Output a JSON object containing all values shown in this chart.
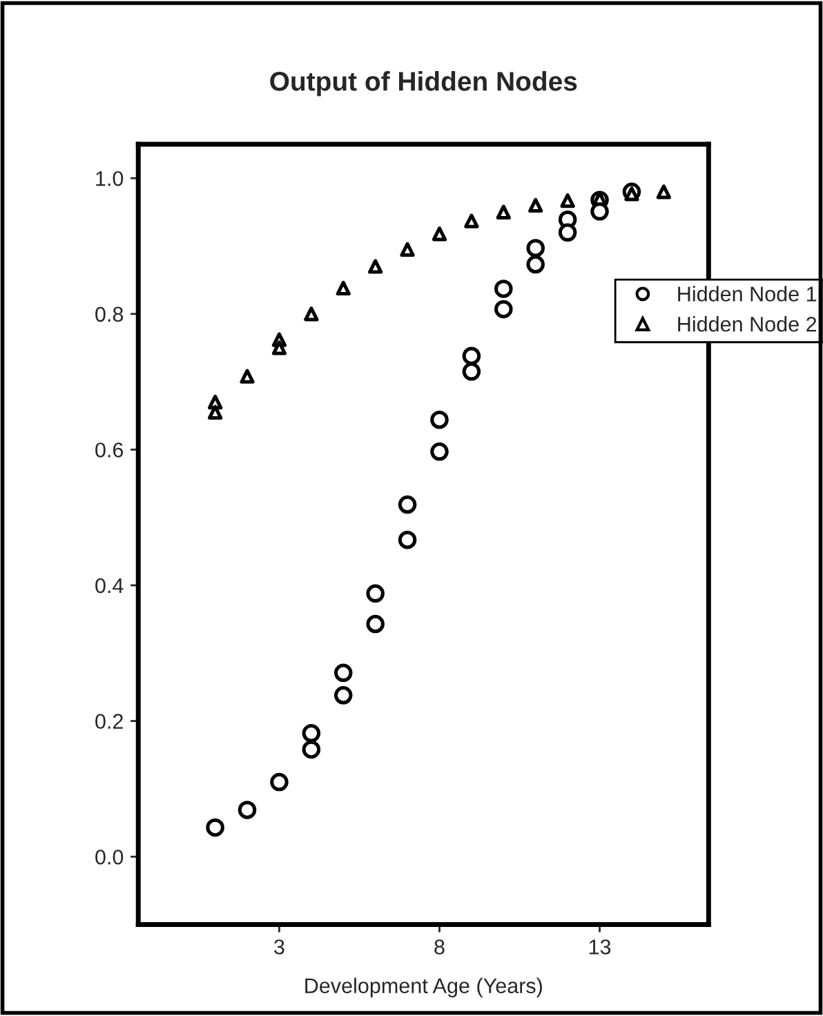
{
  "chart_data": {
    "type": "scatter",
    "title": "Output of Hidden Nodes",
    "xlabel": "Development Age (Years)",
    "xlim": [
      -1.4,
      16.4
    ],
    "xticks": [
      3,
      8,
      13
    ],
    "ylim": [
      -0.1,
      1.05
    ],
    "yticks": [
      {
        "value": 0,
        "label": "0.0"
      },
      {
        "value": 0.2,
        "label": "0.2"
      },
      {
        "value": 0.4,
        "label": "0.4"
      },
      {
        "value": 0.6,
        "label": "0.6"
      },
      {
        "value": 0.8,
        "label": "0.8"
      },
      {
        "value": 1,
        "label": "1.0"
      }
    ],
    "grid": false,
    "legend": "top right",
    "series": [
      {
        "name": "Hidden Node 1",
        "marker": "circle",
        "color": "#000000",
        "x": [
          1,
          2,
          3,
          4,
          4,
          5,
          5,
          6,
          6,
          7,
          7,
          8,
          8,
          9,
          9,
          10,
          10,
          11,
          11,
          12,
          12,
          13,
          13,
          14
        ],
        "values": [
          0.043,
          0.069,
          0.11,
          0.182,
          0.158,
          0.271,
          0.238,
          0.388,
          0.343,
          0.519,
          0.467,
          0.644,
          0.597,
          0.738,
          0.715,
          0.837,
          0.807,
          0.897,
          0.873,
          0.939,
          0.92,
          0.968,
          0.951,
          0.98
        ]
      },
      {
        "name": "Hidden Node 2",
        "marker": "triangle",
        "color": "#000000",
        "x": [
          1,
          1,
          2,
          3,
          3,
          4,
          5,
          6,
          7,
          8,
          9,
          10,
          11,
          12,
          13,
          14,
          15
        ],
        "values": [
          0.67,
          0.655,
          0.708,
          0.762,
          0.75,
          0.8,
          0.838,
          0.87,
          0.895,
          0.918,
          0.937,
          0.95,
          0.96,
          0.967,
          0.97,
          0.977,
          0.98
        ]
      }
    ]
  }
}
